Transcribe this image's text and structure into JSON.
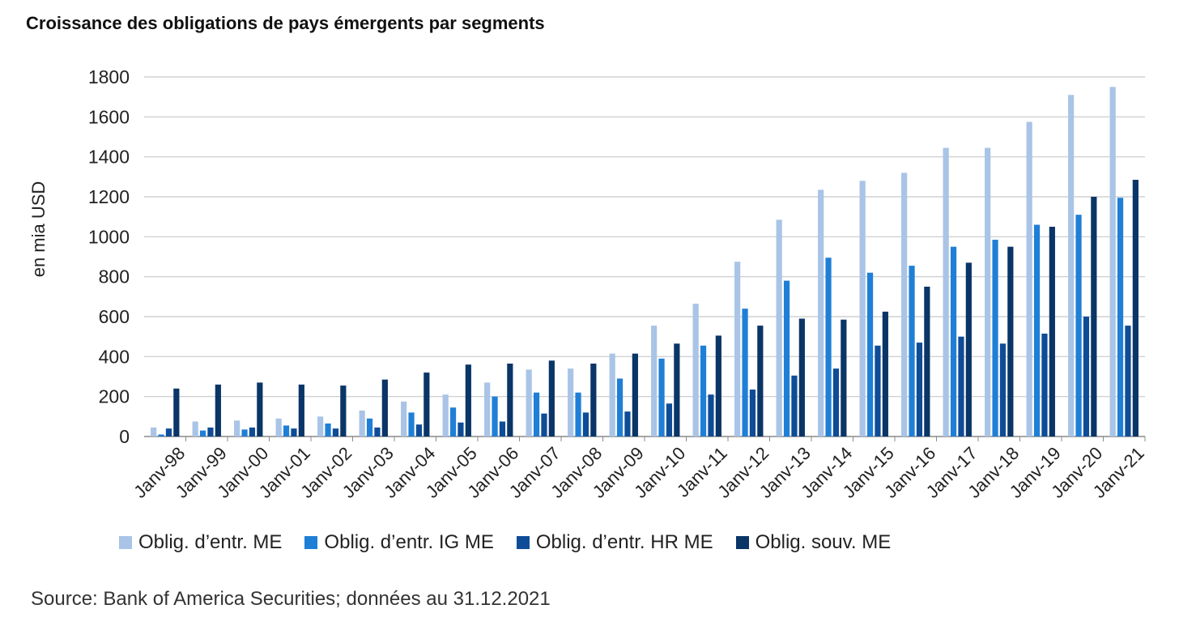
{
  "title": "Croissance des obligations de pays émergents par segments",
  "source": "Source: Bank of America Securities; données au 31.12.2021",
  "chart_data": {
    "type": "bar",
    "title": "Croissance des obligations de pays émergents par segments",
    "ylabel": "en mia USD",
    "xlabel": "",
    "ylim": [
      0,
      1800
    ],
    "yticks": [
      0,
      200,
      400,
      600,
      800,
      1000,
      1200,
      1400,
      1600,
      1800
    ],
    "grid": true,
    "legend_position": "bottom",
    "categories": [
      "Janv-98",
      "Janv-99",
      "Janv-00",
      "Janv-01",
      "Janv-02",
      "Janv-03",
      "Janv-04",
      "Janv-05",
      "Janv-06",
      "Janv-07",
      "Janv-08",
      "Janv-09",
      "Janv-10",
      "Janv-11",
      "Janv-12",
      "Janv-13",
      "Janv-14",
      "Janv-15",
      "Janv-16",
      "Janv-17",
      "Janv-18",
      "Janv-19",
      "Janv-20",
      "Janv-21"
    ],
    "series": [
      {
        "name": "Oblig. d’entr. ME",
        "color": "#a9c4e6",
        "values": [
          45,
          75,
          80,
          90,
          100,
          130,
          175,
          210,
          270,
          335,
          340,
          415,
          555,
          665,
          875,
          1085,
          1235,
          1280,
          1320,
          1445,
          1445,
          1575,
          1710,
          1750
        ]
      },
      {
        "name": "Oblig. d’entr. IG ME",
        "color": "#1f7fd6",
        "values": [
          10,
          30,
          35,
          55,
          65,
          90,
          120,
          145,
          200,
          220,
          220,
          290,
          390,
          455,
          640,
          780,
          895,
          820,
          855,
          950,
          985,
          1060,
          1110,
          1195
        ]
      },
      {
        "name": "Oblig. d’entr. HR ME",
        "color": "#0f4c97",
        "values": [
          40,
          45,
          45,
          40,
          40,
          45,
          60,
          70,
          75,
          115,
          120,
          125,
          165,
          210,
          235,
          305,
          340,
          455,
          470,
          500,
          465,
          515,
          600,
          555
        ]
      },
      {
        "name": "Oblig. souv. ME",
        "color": "#0a3567",
        "values": [
          240,
          260,
          270,
          260,
          255,
          285,
          320,
          360,
          365,
          380,
          365,
          415,
          465,
          505,
          555,
          590,
          585,
          625,
          750,
          870,
          950,
          1050,
          1200,
          1285
        ]
      }
    ]
  }
}
